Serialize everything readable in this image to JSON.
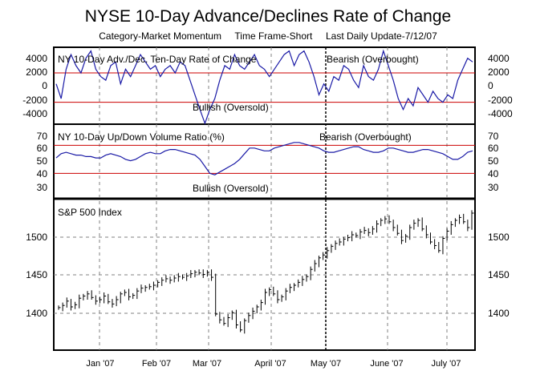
{
  "header": {
    "title": "NYSE 10-Day Advance/Declines Rate of Change",
    "subtitle_category": "Category-Market Momentum",
    "subtitle_timeframe": "Time Frame-Short",
    "subtitle_update": "Last Daily Update-7/12/07"
  },
  "colors": {
    "frame": "#000000",
    "grid": "#808080",
    "threshold_line": "#cc0000",
    "series_line": "#1a1aa6",
    "price_bars": "#000000"
  },
  "chart_data": [
    {
      "type": "line",
      "title": "NY 10-Day Adv./Dec. Ten-Day Rate of Change",
      "annotations": [
        "Bearish (Overbought)",
        "Bullish (Oversold)"
      ],
      "y_ticks": [
        "4000",
        "2000",
        "0",
        "-2000",
        "-4000"
      ],
      "ylim": [
        -5000,
        5500
      ],
      "thresholds": [
        2000,
        -2000
      ],
      "x_ticks": [
        "Jan '07",
        "Feb '07",
        "Mar '07",
        "April '07",
        "May '07",
        "June '07",
        "July '07"
      ],
      "series": [
        {
          "values": [
            500,
            -1500,
            2500,
            4500,
            3000,
            2000,
            4000,
            5000,
            2500,
            1500,
            1000,
            3000,
            3500,
            500,
            2500,
            1500,
            3000,
            4500,
            3500,
            2500,
            3000,
            1500,
            2500,
            3000,
            2000,
            3500,
            3000,
            1000,
            -1000,
            -3000,
            -5000,
            -3000,
            -1500,
            1000,
            3000,
            2500,
            4500,
            3000,
            2500,
            3500,
            4500,
            3000,
            2500,
            1500,
            2500,
            3500,
            4500,
            5000,
            3000,
            4500,
            5000,
            3500,
            1500,
            -1000,
            500,
            -500,
            1500,
            1000,
            3000,
            2500,
            1000,
            0,
            3000,
            1500,
            1000,
            2500,
            5000,
            3000,
            1000,
            -1500,
            -3000,
            -1500,
            -2500,
            0,
            -1000,
            -2000,
            -500,
            -1500,
            -2000,
            -1000,
            -1500,
            1000,
            2500,
            4000,
            3500
          ]
        }
      ]
    },
    {
      "type": "line",
      "title": "NY 10-Day Up/Down Volume Ratio (%)",
      "annotations": [
        "Bearish (Overbought)",
        "Bullish (Oversold)"
      ],
      "y_ticks": [
        "70",
        "60",
        "50",
        "40",
        "30"
      ],
      "ylim": [
        22,
        75
      ],
      "thresholds": [
        60,
        40
      ],
      "series": [
        {
          "values": [
            51,
            54,
            55,
            54,
            53,
            53,
            52,
            52,
            51,
            51,
            53,
            54,
            53,
            52,
            50,
            49,
            50,
            52,
            54,
            55,
            54,
            54,
            56,
            57,
            57,
            56,
            55,
            54,
            53,
            50,
            45,
            40,
            39,
            41,
            43,
            45,
            47,
            50,
            54,
            58,
            58,
            57,
            56,
            56,
            58,
            59,
            60,
            61,
            62,
            62,
            61,
            60,
            59,
            58,
            56,
            55,
            55,
            56,
            57,
            58,
            59,
            59,
            57,
            56,
            55,
            55,
            56,
            58,
            58,
            57,
            56,
            55,
            55,
            56,
            57,
            57,
            56,
            55,
            54,
            52,
            50,
            50,
            52,
            55,
            56
          ]
        }
      ]
    },
    {
      "type": "ohlc",
      "title": "S&P 500 Index",
      "y_ticks": [
        "1500",
        "1450",
        "1400"
      ],
      "ylim": [
        1350,
        1560
      ],
      "x_ticks": [
        "Jan '07",
        "Feb '07",
        "Mar '07",
        "April '07",
        "May '07",
        "June '07",
        "July '07"
      ],
      "series": [
        {
          "values": [
            1409,
            1412,
            1418,
            1410,
            1413,
            1422,
            1425,
            1428,
            1423,
            1418,
            1420,
            1425,
            1417,
            1414,
            1420,
            1428,
            1430,
            1424,
            1426,
            1432,
            1436,
            1437,
            1438,
            1440,
            1444,
            1447,
            1449,
            1447,
            1450,
            1452,
            1451,
            1453,
            1456,
            1458,
            1457,
            1455,
            1458,
            1451,
            1400,
            1392,
            1387,
            1395,
            1402,
            1385,
            1378,
            1391,
            1398,
            1404,
            1410,
            1416,
            1430,
            1434,
            1428,
            1420,
            1424,
            1432,
            1437,
            1440,
            1444,
            1448,
            1452,
            1462,
            1470,
            1478,
            1482,
            1488,
            1494,
            1498,
            1500,
            1504,
            1506,
            1510,
            1509,
            1514,
            1516,
            1513,
            1518,
            1525,
            1530,
            1532,
            1528,
            1520,
            1512,
            1502,
            1508,
            1520,
            1526,
            1530,
            1518,
            1510,
            1500,
            1495,
            1488,
            1505,
            1515,
            1524,
            1530,
            1534,
            1528,
            1520,
            1540
          ]
        }
      ]
    }
  ]
}
